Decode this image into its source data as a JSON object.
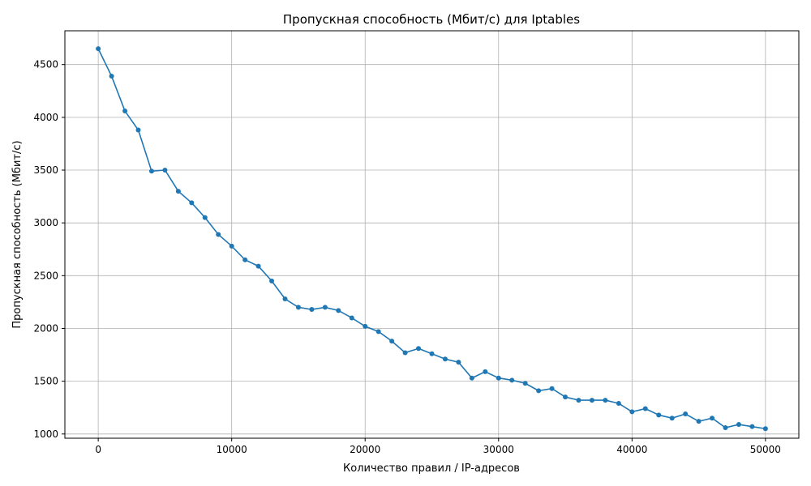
{
  "chart_data": {
    "type": "line",
    "title": "Пропускная способность (Мбит/с) для Iptables",
    "xlabel": "Количество правил / IP-адресов",
    "ylabel": "Пропускная способность (Мбит/с)",
    "xlim": [
      -2500,
      52500
    ],
    "ylim": [
      960,
      4820
    ],
    "xticks": [
      0,
      10000,
      20000,
      30000,
      40000,
      50000
    ],
    "yticks": [
      1000,
      1500,
      2000,
      2500,
      3000,
      3500,
      4000,
      4500
    ],
    "grid": true,
    "line_color": "#1f77b4",
    "marker": "circle",
    "x": [
      0,
      1000,
      2000,
      3000,
      4000,
      5000,
      6000,
      7000,
      8000,
      9000,
      10000,
      11000,
      12000,
      13000,
      14000,
      15000,
      16000,
      17000,
      18000,
      19000,
      20000,
      21000,
      22000,
      23000,
      24000,
      25000,
      26000,
      27000,
      28000,
      29000,
      30000,
      31000,
      32000,
      33000,
      34000,
      35000,
      36000,
      37000,
      38000,
      39000,
      40000,
      41000,
      42000,
      43000,
      44000,
      45000,
      46000,
      47000,
      48000,
      49000,
      50000
    ],
    "values": [
      4650,
      4390,
      4060,
      3880,
      3490,
      3500,
      3300,
      3190,
      3050,
      2890,
      2780,
      2650,
      2590,
      2450,
      2280,
      2200,
      2180,
      2200,
      2170,
      2100,
      2020,
      1970,
      1880,
      1770,
      1810,
      1760,
      1710,
      1680,
      1530,
      1590,
      1530,
      1510,
      1480,
      1410,
      1430,
      1350,
      1320,
      1320,
      1320,
      1290,
      1210,
      1240,
      1180,
      1150,
      1190,
      1120,
      1150,
      1060,
      1090,
      1070,
      1050
    ]
  }
}
